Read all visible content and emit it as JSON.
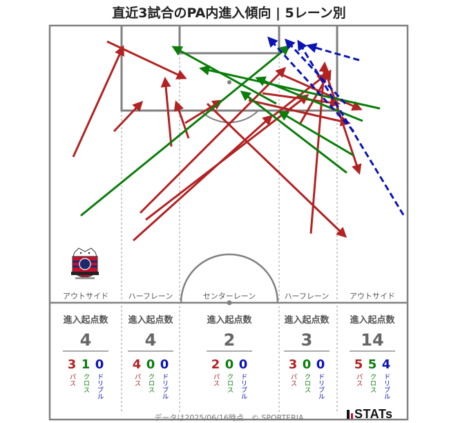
{
  "title": "直近3試合のPA内進入傾向 | 5レーン別",
  "footer": "データは2025/06/16時点　© SPORTERIA",
  "brand": "STATs",
  "colors": {
    "pass": "#b22222",
    "cross": "#0a7d0a",
    "dribble": "#0a14b4",
    "line": "#808080"
  },
  "lanes": [
    {
      "name": "アウトサイド",
      "total": "4",
      "pass": "3",
      "cross": "1",
      "dribble": "0"
    },
    {
      "name": "ハーフレーン",
      "total": "4",
      "pass": "4",
      "cross": "0",
      "dribble": "0"
    },
    {
      "name": "センターレーン",
      "total": "2",
      "pass": "2",
      "cross": "0",
      "dribble": "0"
    },
    {
      "name": "ハーフレーン",
      "total": "3",
      "pass": "3",
      "cross": "0",
      "dribble": "0"
    },
    {
      "name": "アウトサイド",
      "total": "14",
      "pass": "5",
      "cross": "5",
      "dribble": "4"
    }
  ],
  "labels": {
    "stat_head": "進入起点数",
    "pass": "パス",
    "cross": "クロス",
    "dribble": "ドリブル"
  },
  "chart_data": {
    "type": "scatter",
    "title": "直近3試合のPA内進入傾向 | 5レーン別",
    "categories": [
      "アウトサイド",
      "ハーフレーン",
      "センターレーン",
      "ハーフレーン",
      "アウトサイド"
    ],
    "series": [
      {
        "name": "パス",
        "values": [
          3,
          4,
          2,
          3,
          5
        ]
      },
      {
        "name": "クロス",
        "values": [
          1,
          0,
          0,
          0,
          5
        ]
      },
      {
        "name": "ドリブル",
        "values": [
          0,
          0,
          0,
          0,
          4
        ]
      }
    ],
    "arrows": [
      {
        "type": "pass",
        "from": [
          106,
          227
        ],
        "to": [
          178,
          68
        ]
      },
      {
        "type": "pass",
        "from": [
          155,
          60
        ],
        "to": [
          268,
          113
        ]
      },
      {
        "type": "pass",
        "from": [
          165,
          190
        ],
        "to": [
          205,
          148
        ]
      },
      {
        "type": "pass",
        "from": [
          248,
          212
        ],
        "to": [
          239,
          114
        ]
      },
      {
        "type": "pass",
        "from": [
          273,
          200
        ],
        "to": [
          255,
          148
        ]
      },
      {
        "type": "pass",
        "from": [
          268,
          178
        ],
        "to": [
          320,
          146
        ]
      },
      {
        "type": "pass",
        "from": [
          203,
          308
        ],
        "to": [
          412,
          99
        ]
      },
      {
        "type": "pass",
        "from": [
          193,
          348
        ],
        "to": [
          393,
          168
        ]
      },
      {
        "type": "pass",
        "from": [
          211,
          318
        ],
        "to": [
          445,
          138
        ]
      },
      {
        "type": "pass",
        "from": [
          300,
          150
        ],
        "to": [
          500,
          342
        ]
      },
      {
        "type": "pass",
        "from": [
          450,
          338
        ],
        "to": [
          470,
          92
        ]
      },
      {
        "type": "pass",
        "from": [
          435,
          178
        ],
        "to": [
          478,
          103
        ]
      },
      {
        "type": "pass",
        "from": [
          408,
          108
        ],
        "to": [
          522,
          158
        ]
      },
      {
        "type": "pass",
        "from": [
          395,
          168
        ],
        "to": [
          472,
          108
        ]
      },
      {
        "type": "pass",
        "from": [
          360,
          145
        ],
        "to": [
          505,
          178
        ]
      },
      {
        "type": "pass",
        "from": [
          380,
          135
        ],
        "to": [
          490,
          150
        ]
      },
      {
        "type": "pass",
        "from": [
          470,
          100
        ],
        "to": [
          520,
          250
        ]
      },
      {
        "type": "cross",
        "from": [
          117,
          312
        ],
        "to": [
          418,
          67
        ]
      },
      {
        "type": "cross",
        "from": [
          400,
          150
        ],
        "to": [
          251,
          68
        ]
      },
      {
        "type": "cross",
        "from": [
          550,
          157
        ],
        "to": [
          291,
          99
        ]
      },
      {
        "type": "cross",
        "from": [
          525,
          175
        ],
        "to": [
          372,
          113
        ]
      },
      {
        "type": "cross",
        "from": [
          502,
          250
        ],
        "to": [
          350,
          133
        ]
      },
      {
        "type": "cross",
        "from": [
          512,
          225
        ],
        "to": [
          405,
          162
        ]
      },
      {
        "type": "dribble",
        "from": [
          584,
          311
        ],
        "to": [
          432,
          60
        ]
      },
      {
        "type": "dribble",
        "from": [
          512,
          190
        ],
        "to": [
          389,
          55
        ]
      },
      {
        "type": "dribble",
        "from": [
          520,
          87
        ],
        "to": [
          446,
          66
        ]
      },
      {
        "type": "dribble",
        "from": [
          500,
          150
        ],
        "to": [
          414,
          58
        ]
      }
    ]
  }
}
